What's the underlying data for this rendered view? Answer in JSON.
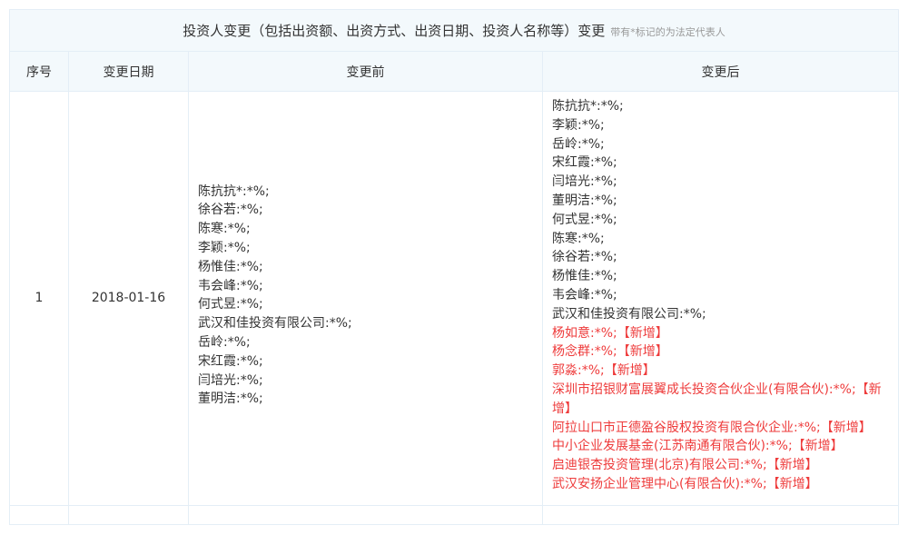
{
  "title": "投资人变更（包括出资额、出资方式、出资日期、投资人名称等）变更",
  "title_note": "带有*标记的为法定代表人",
  "headers": [
    "序号",
    "变更日期",
    "变更前",
    "变更后"
  ],
  "colors": {
    "new_entry": "#ee3b3b",
    "header_bg": "#f3f9fc",
    "border": "#e4eef6"
  },
  "rows": [
    {
      "index": "1",
      "date": "2018-01-16",
      "before": [
        "陈抗抗*:*%;",
        "徐谷若:*%;",
        "陈寒:*%;",
        "李颖:*%;",
        "杨惟佳:*%;",
        "韦会峰:*%;",
        "何式昱:*%;",
        "武汉和佳投资有限公司:*%;",
        "岳岭:*%;",
        "宋红霞:*%;",
        "闫培光:*%;",
        "董明洁:*%;"
      ],
      "after": [
        "陈抗抗*:*%;",
        "李颖:*%;",
        "岳岭:*%;",
        "宋红霞:*%;",
        "闫培光:*%;",
        "董明洁:*%;",
        "何式昱:*%;",
        "陈寒:*%;",
        "徐谷若:*%;",
        "杨惟佳:*%;",
        "韦会峰:*%;",
        "武汉和佳投资有限公司:*%;"
      ],
      "after_new": [
        "杨如意:*%;【新增】",
        "杨念群:*%;【新增】",
        "郭淼:*%;【新增】",
        "深圳市招银财富展翼成长投资合伙企业(有限合伙):*%;【新增】",
        "阿拉山口市正德盈谷股权投资有限合伙企业:*%;【新增】",
        "中小企业发展基金(江苏南通有限合伙):*%;【新增】",
        "启迪银杏投资管理(北京)有限公司:*%;【新增】",
        "武汉安扬企业管理中心(有限合伙):*%;【新增】"
      ]
    }
  ]
}
